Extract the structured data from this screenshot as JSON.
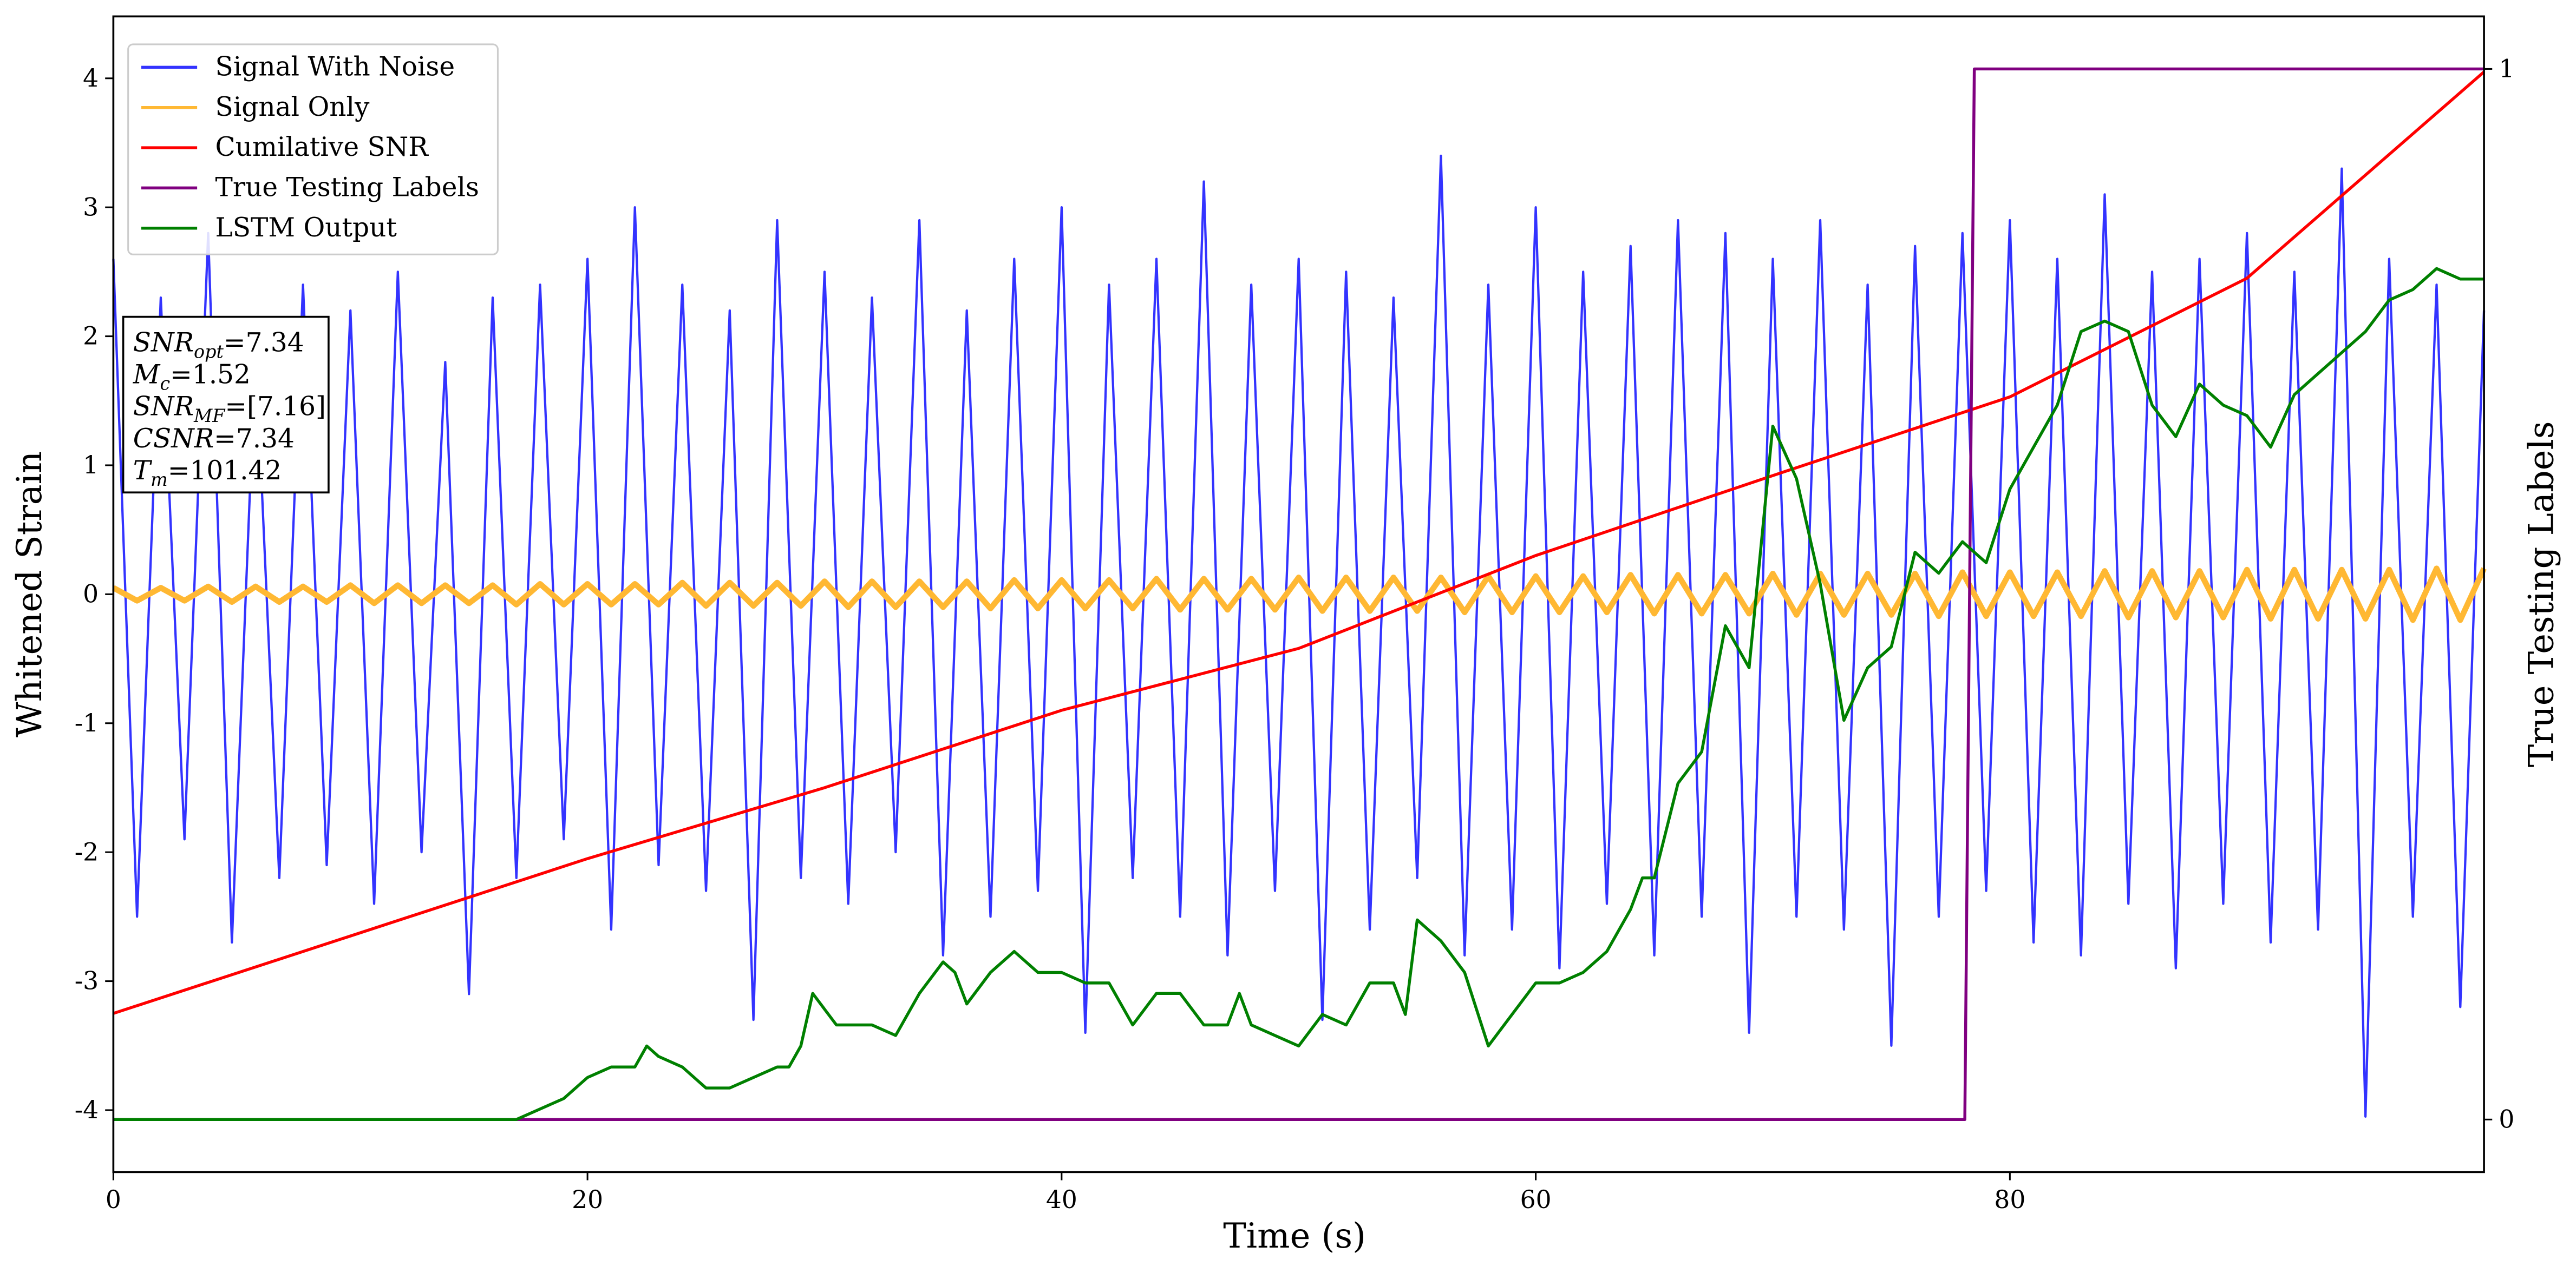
{
  "chart_data": {
    "type": "line",
    "xlabel": "Time (s)",
    "ylabel": "Whitened Strain",
    "y2label": "True Testing Labels",
    "xlim": [
      0,
      100
    ],
    "ylim": [
      -4.48,
      4.48
    ],
    "y2lim": [
      -0.05,
      1.05
    ],
    "xticks": [
      0,
      20,
      40,
      60,
      80
    ],
    "yticks": [
      -4,
      -3,
      -2,
      -1,
      0,
      1,
      2,
      3,
      4
    ],
    "y2ticks": [
      0,
      1
    ],
    "legend": "upper left",
    "annotations": [
      {
        "symbol": "SNR",
        "sub": "opt",
        "text": "=7.34"
      },
      {
        "symbol": "M",
        "sub": "c",
        "text": "=1.52"
      },
      {
        "symbol": "SNR",
        "sub": "MF",
        "text": "=[7.16]"
      },
      {
        "symbol": "CSNR",
        "text": "=7.34"
      },
      {
        "symbol": "T",
        "sub": "m",
        "text": "=101.42"
      }
    ],
    "x": [
      0,
      1,
      2,
      3,
      4,
      5,
      6,
      7,
      8,
      9,
      10,
      11,
      12,
      13,
      14,
      15,
      16,
      17,
      18,
      19,
      20,
      21,
      22,
      23,
      24,
      25,
      26,
      27,
      28,
      29,
      30,
      31,
      32,
      33,
      34,
      35,
      36,
      37,
      38,
      39,
      40,
      41,
      42,
      43,
      44,
      45,
      46,
      47,
      48,
      49,
      50,
      51,
      52,
      53,
      54,
      55,
      56,
      57,
      58,
      59,
      60,
      61,
      62,
      63,
      64,
      65,
      66,
      67,
      68,
      69,
      70,
      71,
      72,
      73,
      74,
      75,
      76,
      77,
      78,
      79,
      80,
      81,
      82,
      83,
      84,
      85,
      86,
      87,
      88,
      89,
      90,
      91,
      92,
      93,
      94,
      95,
      96,
      97,
      98,
      99,
      100
    ],
    "series": [
      {
        "name": "Signal With Noise",
        "color": "#3333ff",
        "values": [
          2.6,
          -2.5,
          2.3,
          -1.9,
          2.8,
          -2.7,
          1.9,
          -2.2,
          2.4,
          -2.1,
          2.2,
          -2.4,
          2.5,
          -2.0,
          1.8,
          -3.1,
          2.3,
          -2.2,
          2.4,
          -1.9,
          2.6,
          -2.6,
          3.0,
          -2.1,
          2.4,
          -2.3,
          2.2,
          -3.3,
          2.9,
          -2.2,
          2.5,
          -2.4,
          2.3,
          -2.0,
          2.9,
          -2.8,
          2.2,
          -2.5,
          2.6,
          -2.3,
          3.0,
          -3.4,
          2.4,
          -2.2,
          2.6,
          -2.5,
          3.2,
          -2.8,
          2.4,
          -2.3,
          2.6,
          -3.3,
          2.5,
          -2.6,
          2.3,
          -2.2,
          3.4,
          -2.8,
          2.4,
          -2.6,
          3.0,
          -2.9,
          2.5,
          -2.4,
          2.7,
          -2.8,
          2.9,
          -2.5,
          2.8,
          -3.4,
          2.6,
          -2.5,
          2.9,
          -2.6,
          2.4,
          -3.5,
          2.7,
          -2.5,
          2.8,
          -2.3,
          2.9,
          -2.7,
          2.6,
          -2.8,
          3.1,
          -2.4,
          2.5,
          -2.9,
          2.6,
          -2.4,
          2.8,
          -2.7,
          2.5,
          -2.6,
          3.3,
          -4.05,
          2.6,
          -2.5,
          2.4,
          -3.2,
          2.2
        ]
      },
      {
        "name": "Signal Only",
        "color": "#ffb833",
        "values": [
          0.05,
          -0.05,
          0.05,
          -0.05,
          0.06,
          -0.06,
          0.06,
          -0.06,
          0.06,
          -0.06,
          0.07,
          -0.07,
          0.07,
          -0.07,
          0.07,
          -0.07,
          0.07,
          -0.08,
          0.08,
          -0.08,
          0.08,
          -0.08,
          0.08,
          -0.08,
          0.09,
          -0.09,
          0.09,
          -0.09,
          0.09,
          -0.09,
          0.1,
          -0.1,
          0.1,
          -0.1,
          0.1,
          -0.1,
          0.1,
          -0.11,
          0.11,
          -0.11,
          0.11,
          -0.11,
          0.11,
          -0.11,
          0.12,
          -0.12,
          0.12,
          -0.12,
          0.12,
          -0.12,
          0.13,
          -0.13,
          0.13,
          -0.13,
          0.13,
          -0.13,
          0.13,
          -0.14,
          0.14,
          -0.14,
          0.14,
          -0.14,
          0.14,
          -0.14,
          0.15,
          -0.15,
          0.15,
          -0.15,
          0.15,
          -0.15,
          0.16,
          -0.16,
          0.16,
          -0.16,
          0.16,
          -0.16,
          0.16,
          -0.17,
          0.17,
          -0.17,
          0.17,
          -0.17,
          0.17,
          -0.17,
          0.18,
          -0.18,
          0.18,
          -0.18,
          0.18,
          -0.18,
          0.19,
          -0.19,
          0.19,
          -0.19,
          0.19,
          -0.19,
          0.19,
          -0.2,
          0.2,
          -0.2,
          0.2
        ]
      },
      {
        "name": "Cumilative SNR",
        "color": "#ff0000",
        "x": [
          0,
          10,
          20,
          30,
          40,
          50,
          60,
          70,
          80,
          90,
          100
        ],
        "values": [
          -3.25,
          -2.65,
          -2.05,
          -1.5,
          -0.9,
          -0.42,
          0.3,
          0.92,
          1.53,
          2.45,
          4.05
        ]
      },
      {
        "name": "True Testing Labels",
        "color": "#800080",
        "axis": "y2",
        "x": [
          0,
          78.1,
          78.5,
          100
        ],
        "values": [
          0,
          0,
          1,
          1
        ]
      },
      {
        "name": "LSTM Output",
        "color": "#008000",
        "axis": "y2",
        "x": [
          0,
          15,
          17,
          18,
          19,
          20,
          21,
          22,
          22.5,
          23,
          24,
          25,
          26,
          27,
          28,
          28.5,
          29,
          29.5,
          30.5,
          32,
          33,
          34,
          35,
          35.5,
          36,
          37,
          38,
          39,
          40,
          41,
          42,
          43,
          44,
          45,
          46,
          47,
          47.5,
          48,
          49,
          50,
          51,
          52,
          53,
          54,
          54.5,
          55,
          56,
          57,
          58,
          59,
          60,
          61,
          62,
          63,
          64,
          64.5,
          65,
          66,
          67,
          68,
          69,
          70,
          71,
          72,
          73,
          74,
          75,
          76,
          77,
          78,
          79,
          80,
          81,
          82,
          83,
          84,
          85,
          86,
          87,
          88,
          89,
          90,
          91,
          92,
          93,
          94,
          95,
          96,
          97,
          98,
          99,
          100
        ],
        "values": [
          0,
          0,
          0,
          0.01,
          0.02,
          0.04,
          0.05,
          0.05,
          0.07,
          0.06,
          0.05,
          0.03,
          0.03,
          0.04,
          0.05,
          0.05,
          0.07,
          0.12,
          0.09,
          0.09,
          0.08,
          0.12,
          0.15,
          0.14,
          0.11,
          0.14,
          0.16,
          0.14,
          0.14,
          0.13,
          0.13,
          0.09,
          0.12,
          0.12,
          0.09,
          0.09,
          0.12,
          0.09,
          0.08,
          0.07,
          0.1,
          0.09,
          0.13,
          0.13,
          0.1,
          0.19,
          0.17,
          0.14,
          0.07,
          0.1,
          0.13,
          0.13,
          0.14,
          0.16,
          0.2,
          0.23,
          0.23,
          0.32,
          0.35,
          0.47,
          0.43,
          0.66,
          0.61,
          0.51,
          0.38,
          0.43,
          0.45,
          0.54,
          0.52,
          0.55,
          0.53,
          0.6,
          0.64,
          0.68,
          0.75,
          0.76,
          0.75,
          0.68,
          0.65,
          0.7,
          0.68,
          0.67,
          0.64,
          0.69,
          0.71,
          0.73,
          0.75,
          0.78,
          0.79,
          0.81,
          0.8,
          0.8
        ]
      }
    ]
  }
}
